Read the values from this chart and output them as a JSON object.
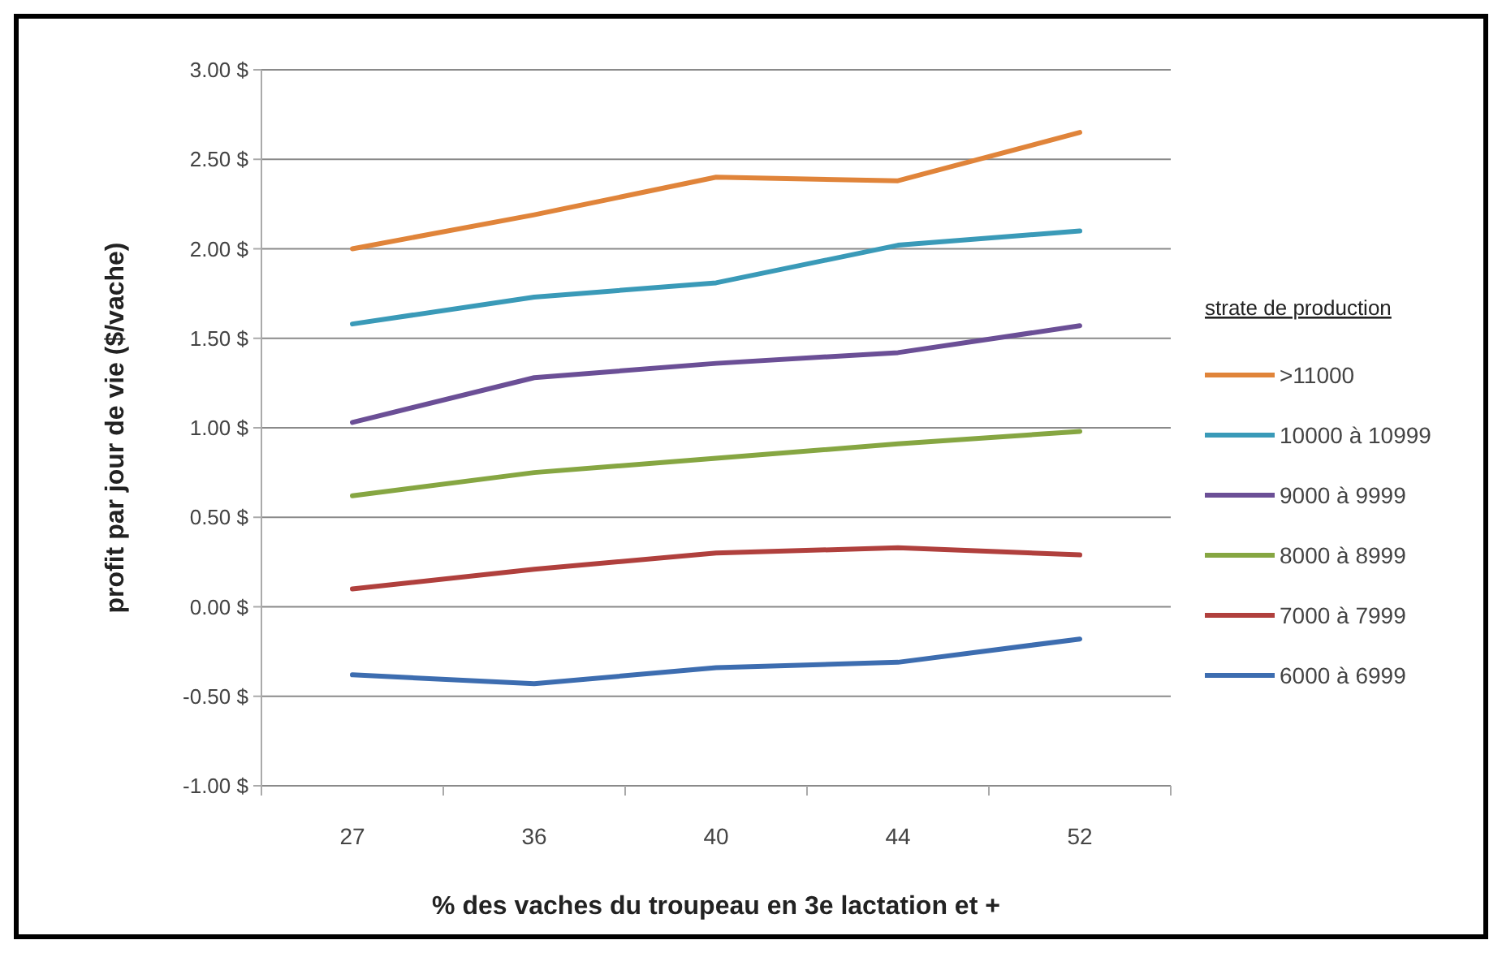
{
  "chart_data": {
    "type": "line",
    "xlabel": "% des vaches du troupeau  en 3e lactation et +",
    "ylabel": "profit par jour de vie  ($/vache)",
    "legend_title": "strate de production",
    "legend": "right",
    "grid": "y",
    "categories": [
      "27",
      "36",
      "40",
      "44",
      "52"
    ],
    "ylim": [
      -1,
      3
    ],
    "yticks": [
      {
        "value": -1,
        "label": "-1.00 $"
      },
      {
        "value": -0.5,
        "label": "-0.50 $"
      },
      {
        "value": 0,
        "label": "0.00 $"
      },
      {
        "value": 0.5,
        "label": "0.50 $"
      },
      {
        "value": 1,
        "label": "1.00 $"
      },
      {
        "value": 1.5,
        "label": "1.50 $"
      },
      {
        "value": 2,
        "label": "2.00 $"
      },
      {
        "value": 2.5,
        "label": "2.50 $"
      },
      {
        "value": 3,
        "label": "3.00 $"
      }
    ],
    "series": [
      {
        "name": ">11000",
        "color": "#e0843a",
        "values": [
          2.0,
          2.19,
          2.4,
          2.38,
          2.65
        ]
      },
      {
        "name": "10000 à 10999",
        "color": "#3a9ab8",
        "values": [
          1.58,
          1.73,
          1.81,
          2.02,
          2.1
        ]
      },
      {
        "name": "9000 à 9999",
        "color": "#6b4f96",
        "values": [
          1.03,
          1.28,
          1.36,
          1.42,
          1.57
        ]
      },
      {
        "name": "8000 à 8999",
        "color": "#86a642",
        "values": [
          0.62,
          0.75,
          0.83,
          0.91,
          0.98
        ]
      },
      {
        "name": "7000 à 7999",
        "color": "#b0403d",
        "values": [
          0.1,
          0.21,
          0.3,
          0.33,
          0.29
        ]
      },
      {
        "name": "6000 à 6999",
        "color": "#3d6db0",
        "values": [
          -0.38,
          -0.43,
          -0.34,
          -0.31,
          -0.18
        ]
      }
    ]
  }
}
